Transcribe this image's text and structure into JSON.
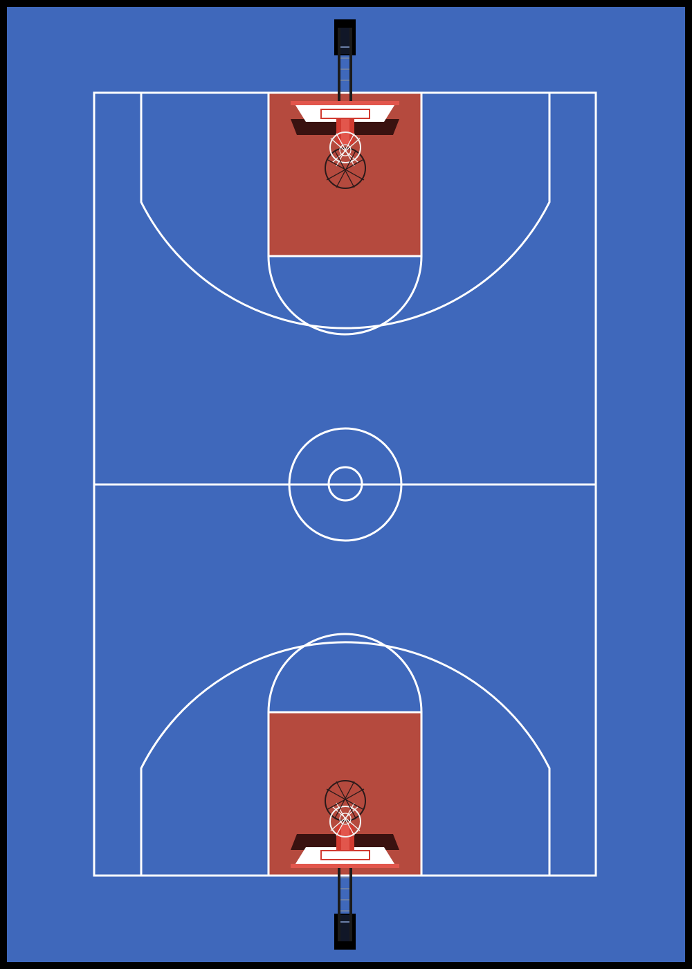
{
  "court": {
    "colors": {
      "frame": "#000000",
      "floor": "#3f68bb",
      "paint": "#b54a3e",
      "lines": "#ffffff",
      "backboard_shadow": "#3a1210",
      "backboard_accent": "#e2564c",
      "rim": "#d13a30",
      "net_dark": "#2a1a1a",
      "net_light": "#f3f3f3",
      "hoop_post": "#1b1b1b",
      "hoop_base": "#000000"
    },
    "icons": {
      "top_hoop": "basketball-hoop-icon",
      "bottom_hoop": "basketball-hoop-icon"
    }
  }
}
